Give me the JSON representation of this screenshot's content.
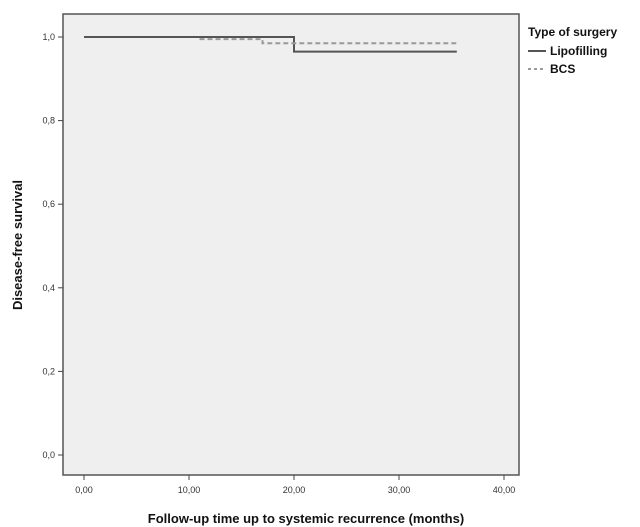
{
  "chart_data": {
    "type": "line",
    "xlabel": "Follow-up time up to systemic recurrence (months)",
    "ylabel": "Disease-free survival",
    "xlim": [
      0,
      40
    ],
    "ylim": [
      0,
      1
    ],
    "x_ticks": [
      "0,00",
      "10,00",
      "20,00",
      "30,00",
      "40,00"
    ],
    "x_tick_values": [
      0,
      10,
      20,
      30,
      40
    ],
    "y_ticks": [
      "0,0",
      "0,2",
      "0,4",
      "0,6",
      "0,8",
      "1,0"
    ],
    "y_tick_values": [
      0,
      0.2,
      0.4,
      0.6,
      0.8,
      1.0
    ],
    "grid": false,
    "legend": {
      "title": "Type of surgery",
      "position": "outside-right"
    },
    "series": [
      {
        "name": "Lipofilling",
        "style": "solid",
        "color": "#555555",
        "step": true,
        "x": [
          0,
          20,
          20,
          35.5
        ],
        "y": [
          1.0,
          1.0,
          0.965,
          0.965
        ]
      },
      {
        "name": "BCS",
        "style": "dashed",
        "color": "#9a9a9a",
        "step": true,
        "x": [
          11,
          17,
          17,
          35.5
        ],
        "y": [
          0.995,
          0.995,
          0.985,
          0.985
        ]
      }
    ]
  },
  "colors": {
    "plot_background": "#efefef",
    "frame": "#555555"
  }
}
